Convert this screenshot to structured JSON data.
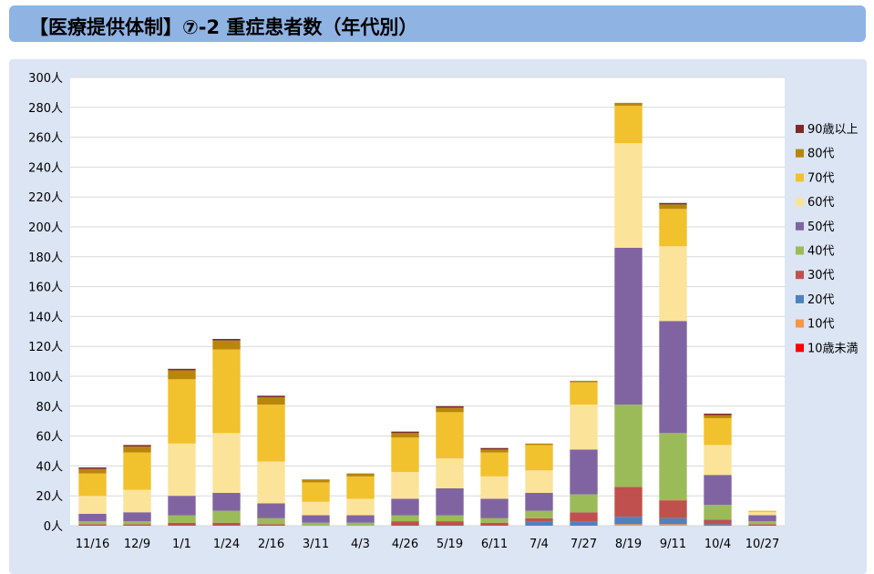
{
  "header": {
    "title": "【医療提供体制】⑦-2 重症患者数（年代別）"
  },
  "chart_data": {
    "type": "bar",
    "stacked": true,
    "title": "",
    "xlabel": "",
    "ylabel": "",
    "ylim": [
      0,
      300
    ],
    "y_ticks": [
      "0人",
      "20人",
      "40人",
      "60人",
      "80人",
      "100人",
      "120人",
      "140人",
      "160人",
      "180人",
      "200人",
      "220人",
      "240人",
      "260人",
      "280人",
      "300人"
    ],
    "x_ticks": [
      "11/16",
      "12/9",
      "1/1",
      "1/24",
      "2/16",
      "3/11",
      "4/3",
      "4/26",
      "5/19",
      "6/11",
      "7/4",
      "7/27",
      "8/19",
      "9/11",
      "10/4",
      "10/27"
    ],
    "legend_position": "right",
    "grid": true,
    "series_order_bottom_to_top": [
      "10歳未満",
      "10代",
      "20代",
      "30代",
      "40代",
      "50代",
      "60代",
      "70代",
      "80代",
      "90歳以上"
    ],
    "legend": [
      {
        "name": "90歳以上",
        "color": "#7b2a2a"
      },
      {
        "name": "80代",
        "color": "#b8860b"
      },
      {
        "name": "70代",
        "color": "#f2c12e"
      },
      {
        "name": "60代",
        "color": "#fbe39a"
      },
      {
        "name": "50代",
        "color": "#8064a2"
      },
      {
        "name": "40代",
        "color": "#9bbb59"
      },
      {
        "name": "30代",
        "color": "#c0504d"
      },
      {
        "name": "20代",
        "color": "#4f81bd"
      },
      {
        "name": "10代",
        "color": "#f79646"
      },
      {
        "name": "10歳未満",
        "color": "#ff0000"
      }
    ],
    "series": [
      {
        "name": "10歳未満",
        "color": "#ff0000",
        "values": [
          0,
          0,
          0,
          0,
          0,
          0,
          0,
          0,
          0,
          0,
          0,
          0,
          0,
          0,
          0,
          0
        ]
      },
      {
        "name": "10代",
        "color": "#f79646",
        "values": [
          0,
          0,
          0,
          0,
          0,
          0,
          0,
          0,
          0,
          0,
          0,
          0,
          1,
          1,
          0,
          0
        ]
      },
      {
        "name": "20代",
        "color": "#4f81bd",
        "values": [
          0,
          0,
          0,
          0,
          0,
          0,
          0,
          0,
          0,
          0,
          3,
          3,
          5,
          4,
          1,
          0
        ]
      },
      {
        "name": "30代",
        "color": "#c0504d",
        "values": [
          1,
          1,
          2,
          2,
          1,
          0,
          0,
          3,
          3,
          2,
          2,
          6,
          20,
          12,
          3,
          1
        ]
      },
      {
        "name": "40代",
        "color": "#9bbb59",
        "values": [
          2,
          2,
          5,
          8,
          4,
          2,
          2,
          4,
          4,
          3,
          5,
          12,
          55,
          45,
          10,
          2
        ]
      },
      {
        "name": "50代",
        "color": "#8064a2",
        "values": [
          5,
          6,
          13,
          12,
          10,
          5,
          5,
          11,
          18,
          13,
          12,
          30,
          105,
          75,
          20,
          4
        ]
      },
      {
        "name": "60代",
        "color": "#fbe39a",
        "values": [
          12,
          15,
          35,
          40,
          28,
          9,
          11,
          18,
          20,
          15,
          15,
          30,
          70,
          50,
          20,
          2
        ]
      },
      {
        "name": "70代",
        "color": "#f2c12e",
        "values": [
          15,
          25,
          43,
          56,
          38,
          13,
          15,
          23,
          31,
          16,
          17,
          15,
          25,
          25,
          18,
          1
        ]
      },
      {
        "name": "80代",
        "color": "#b8860b",
        "values": [
          3,
          4,
          6,
          6,
          5,
          2,
          2,
          3,
          3,
          2,
          1,
          1,
          2,
          3,
          2,
          0
        ]
      },
      {
        "name": "90歳以上",
        "color": "#7b2a2a",
        "values": [
          1,
          1,
          1,
          1,
          1,
          0,
          0,
          1,
          1,
          1,
          0,
          0,
          0,
          1,
          1,
          0
        ]
      }
    ]
  }
}
